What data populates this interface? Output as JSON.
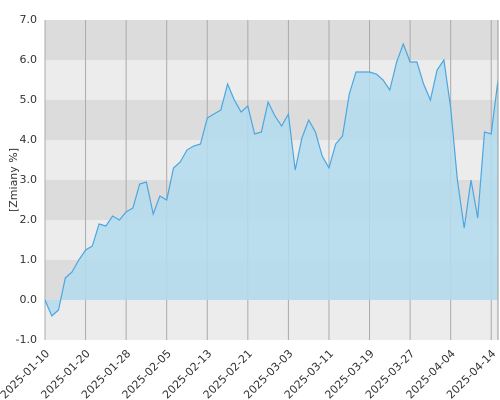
{
  "chart_data": {
    "type": "area",
    "y_label": "[Zmiany %]",
    "categories": [
      "2025-01-10",
      null,
      null,
      null,
      null,
      null,
      "2025-01-20",
      null,
      null,
      null,
      null,
      null,
      "2025-01-28",
      null,
      null,
      null,
      null,
      null,
      "2025-02-05",
      null,
      null,
      null,
      null,
      null,
      "2025-02-13",
      null,
      null,
      null,
      null,
      null,
      "2025-02-21",
      null,
      null,
      null,
      null,
      null,
      "2025-03-03",
      null,
      null,
      null,
      null,
      null,
      "2025-03-11",
      null,
      null,
      null,
      null,
      null,
      "2025-03-19",
      null,
      null,
      null,
      null,
      null,
      "2025-03-27",
      null,
      null,
      null,
      null,
      null,
      "2025-04-04",
      null,
      null,
      null,
      null,
      null,
      "2025-04-14",
      null
    ],
    "values": [
      0.0,
      -0.4,
      -0.25,
      0.55,
      0.7,
      1.0,
      1.25,
      1.35,
      1.9,
      1.85,
      2.1,
      2.0,
      2.2,
      2.3,
      2.9,
      2.95,
      2.15,
      2.6,
      2.5,
      3.3,
      3.45,
      3.75,
      3.85,
      3.9,
      4.55,
      4.65,
      4.75,
      5.4,
      5.0,
      4.7,
      4.85,
      4.15,
      4.2,
      4.95,
      4.6,
      4.35,
      4.65,
      3.25,
      4.05,
      4.5,
      4.2,
      3.6,
      3.3,
      3.9,
      4.1,
      5.15,
      5.7,
      5.7,
      5.7,
      5.65,
      5.5,
      5.25,
      5.95,
      6.4,
      5.95,
      5.95,
      5.4,
      5.0,
      5.75,
      6.0,
      4.8,
      3.0,
      1.8,
      3.0,
      2.05,
      4.2,
      4.15,
      5.5
    ],
    "color": "#4da6e0",
    "fill_color": "#b3dcee",
    "ylim": [
      -1,
      7
    ],
    "yticks": [
      {
        "value": -1,
        "label": "-1.0"
      },
      {
        "value": 0,
        "label": "0.0"
      },
      {
        "value": 1,
        "label": "1.0"
      },
      {
        "value": 2,
        "label": "2.0"
      },
      {
        "value": 3,
        "label": "3.0"
      },
      {
        "value": 4,
        "label": "4.0"
      },
      {
        "value": 5,
        "label": "5.0"
      },
      {
        "value": 6,
        "label": "6.0"
      },
      {
        "value": 7,
        "label": "7.0"
      }
    ],
    "band_colors": [
      "#ececec",
      "#dcdcdc"
    ],
    "grid": true
  }
}
